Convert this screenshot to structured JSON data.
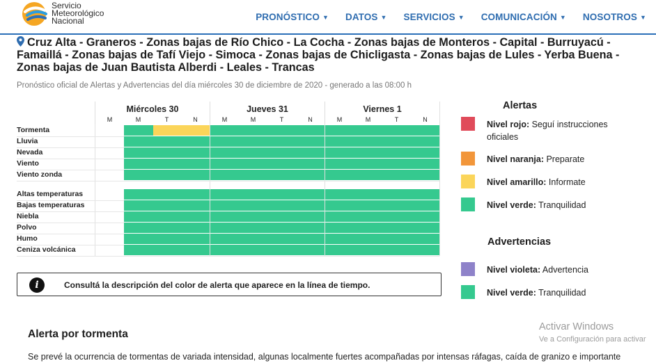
{
  "header": {
    "logo_lines": [
      "Servicio",
      "Meteorológico",
      "Nacional"
    ],
    "nav": [
      {
        "label": "PRONÓSTICO",
        "icon": "chevron-down-icon"
      },
      {
        "label": "DATOS",
        "icon": "chevron-down-icon"
      },
      {
        "label": "SERVICIOS",
        "icon": "chevron-down-icon"
      },
      {
        "label": "COMUNICACIÓN",
        "icon": "chevron-down-icon"
      },
      {
        "label": "NOSOTROS",
        "icon": "chevron-down-icon"
      }
    ]
  },
  "location": {
    "icon": "map-pin-icon",
    "title": "Cruz Alta - Graneros - Zonas bajas de Río Chico - La Cocha - Zonas bajas de Monteros - Capital - Burruyacú - Famaillá - Zonas bajas de Tafí Viejo - Simoca - Zonas bajas de Chicligasta - Zonas bajas de Lules - Yerba Buena - Zonas bajas de Juan Bautista Alberdi - Leales - Trancas",
    "subtitle": "Pronóstico oficial de Alertas y Advertencias del día miércoles 30 de diciembre de 2020 - generado a las 08:00 h"
  },
  "colors": {
    "rojo": "#e04b5a",
    "naranja": "#f2963a",
    "amarillo": "#fbd55a",
    "verde": "#35c98f",
    "violeta": "#8e82c9",
    "accent": "#2f6db0"
  },
  "grid": {
    "days": [
      {
        "name": "Miércoles 30",
        "periods": [
          "M",
          "M",
          "T",
          "N"
        ]
      },
      {
        "name": "Jueves 31",
        "periods": [
          "M",
          "M",
          "T",
          "N"
        ]
      },
      {
        "name": "Viernes 1",
        "periods": [
          "M",
          "M",
          "T",
          "N"
        ]
      }
    ],
    "groups": [
      {
        "rows": [
          {
            "label": "Tormenta",
            "levels": [
              null,
              "verde",
              "amarillo",
              "amarillo",
              "verde",
              "verde",
              "verde",
              "verde",
              "verde",
              "verde",
              "verde",
              "verde"
            ]
          },
          {
            "label": "Lluvia",
            "levels": [
              null,
              "verde",
              "verde",
              "verde",
              "verde",
              "verde",
              "verde",
              "verde",
              "verde",
              "verde",
              "verde",
              "verde"
            ]
          },
          {
            "label": "Nevada",
            "levels": [
              null,
              "verde",
              "verde",
              "verde",
              "verde",
              "verde",
              "verde",
              "verde",
              "verde",
              "verde",
              "verde",
              "verde"
            ]
          },
          {
            "label": "Viento",
            "levels": [
              null,
              "verde",
              "verde",
              "verde",
              "verde",
              "verde",
              "verde",
              "verde",
              "verde",
              "verde",
              "verde",
              "verde"
            ]
          },
          {
            "label": "Viento zonda",
            "levels": [
              null,
              "verde",
              "verde",
              "verde",
              "verde",
              "verde",
              "verde",
              "verde",
              "verde",
              "verde",
              "verde",
              "verde"
            ]
          }
        ]
      },
      {
        "rows": [
          {
            "label": "Altas temperaturas",
            "levels": [
              null,
              "verde",
              "verde",
              "verde",
              "verde",
              "verde",
              "verde",
              "verde",
              "verde",
              "verde",
              "verde",
              "verde"
            ]
          },
          {
            "label": "Bajas temperaturas",
            "levels": [
              null,
              "verde",
              "verde",
              "verde",
              "verde",
              "verde",
              "verde",
              "verde",
              "verde",
              "verde",
              "verde",
              "verde"
            ]
          },
          {
            "label": "Niebla",
            "levels": [
              null,
              "verde",
              "verde",
              "verde",
              "verde",
              "verde",
              "verde",
              "verde",
              "verde",
              "verde",
              "verde",
              "verde"
            ]
          },
          {
            "label": "Polvo",
            "levels": [
              null,
              "verde",
              "verde",
              "verde",
              "verde",
              "verde",
              "verde",
              "verde",
              "verde",
              "verde",
              "verde",
              "verde"
            ]
          },
          {
            "label": "Humo",
            "levels": [
              null,
              "verde",
              "verde",
              "verde",
              "verde",
              "verde",
              "verde",
              "verde",
              "verde",
              "verde",
              "verde",
              "verde"
            ]
          },
          {
            "label": "Ceniza volcánica",
            "levels": [
              null,
              "verde",
              "verde",
              "verde",
              "verde",
              "verde",
              "verde",
              "verde",
              "verde",
              "verde",
              "verde",
              "verde"
            ]
          }
        ]
      }
    ]
  },
  "info": {
    "icon": "info-icon",
    "text": "Consultá la descripción del color de alerta que aparece en la línea de tiempo."
  },
  "legend": {
    "alertas_title": "Alertas",
    "alertas": [
      {
        "level": "rojo",
        "name": "Nivel rojo:",
        "desc": " Seguí instrucciones oficiales"
      },
      {
        "level": "naranja",
        "name": "Nivel naranja:",
        "desc": " Preparate"
      },
      {
        "level": "amarillo",
        "name": "Nivel amarillo:",
        "desc": " Informate"
      },
      {
        "level": "verde",
        "name": "Nivel verde:",
        "desc": " Tranquilidad"
      }
    ],
    "advertencias_title": "Advertencias",
    "advertencias": [
      {
        "level": "violeta",
        "name": "Nivel violeta:",
        "desc": " Advertencia"
      },
      {
        "level": "verde",
        "name": "Nivel verde:",
        "desc": " Tranquilidad"
      }
    ]
  },
  "section": {
    "title": "Alerta por tormenta",
    "text": "Se prevé la ocurrencia de tormentas de variada intensidad, algunas localmente fuertes acompañadas por intensas ráfagas, caída de granizo e importante"
  },
  "watermark": {
    "line1": "Activar Windows",
    "line2": "Ve a Configuración para activar"
  }
}
